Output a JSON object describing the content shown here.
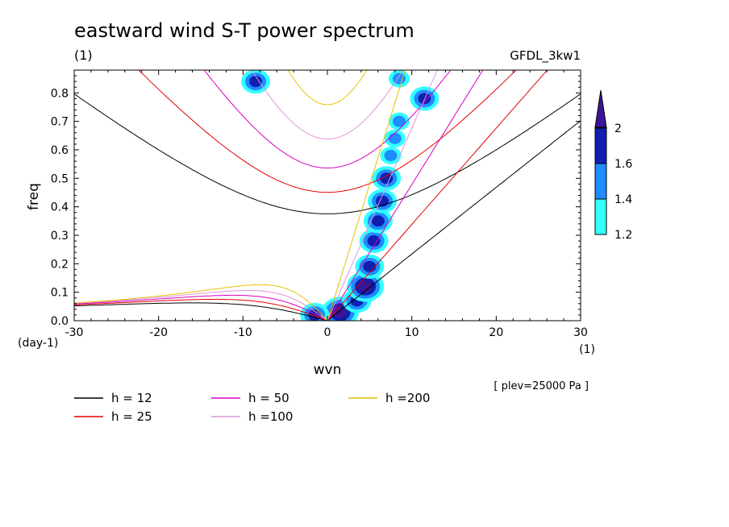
{
  "chart_data": {
    "type": "heatmap",
    "title": "eastward wind S-T power spectrum",
    "subtitle_left": "(1)",
    "subtitle_right": "GFDL_3kw1",
    "xlabel": "wvn",
    "ylabel": "freq",
    "x_unit": "(1)",
    "y_unit": "(day-1)",
    "annotation": "[ plev=25000 Pa ]",
    "xlim": [
      -30,
      30
    ],
    "ylim": [
      0,
      0.88
    ],
    "x_ticks": [
      -30,
      -20,
      -10,
      0,
      10,
      20,
      30
    ],
    "x_tick_labels": [
      "-30",
      "-20",
      "-10",
      "0",
      "10",
      "20",
      "30"
    ],
    "y_ticks": [
      0,
      0.1,
      0.2,
      0.3,
      0.4,
      0.5,
      0.6,
      0.7,
      0.8
    ],
    "y_tick_labels": [
      "0.0",
      "0.1",
      "0.2",
      "0.3",
      "0.4",
      "0.5",
      "0.6",
      "0.7",
      "0.8"
    ],
    "colorbar": {
      "levels": [
        1.2,
        1.4,
        1.6,
        2
      ],
      "level_labels": [
        "1.2",
        "1.4",
        "1.6",
        "2"
      ],
      "colors": [
        "#33ffff",
        "#1f8cff",
        "#0f1fb0",
        "#3c1496"
      ]
    },
    "dispersion_curves": [
      {
        "label": "h = 12",
        "h": 12,
        "color": "#000000"
      },
      {
        "label": "h = 25",
        "h": 25,
        "color": "#e00000"
      },
      {
        "label": "h = 50",
        "h": 50,
        "color": "#d800c0"
      },
      {
        "label": "h =100",
        "h": 100,
        "color": "#dc96dc"
      },
      {
        "label": "h =200",
        "h": 200,
        "color": "#e8c000"
      }
    ],
    "power_blobs": [
      {
        "x": 1.5,
        "y": 0.03,
        "level": 4
      },
      {
        "x": -1.5,
        "y": 0.02,
        "level": 3
      },
      {
        "x": 3.5,
        "y": 0.07,
        "level": 3
      },
      {
        "x": 4.5,
        "y": 0.12,
        "level": 4
      },
      {
        "x": 5.0,
        "y": 0.19,
        "level": 3
      },
      {
        "x": 5.5,
        "y": 0.28,
        "level": 3
      },
      {
        "x": 6.0,
        "y": 0.35,
        "level": 3
      },
      {
        "x": 6.5,
        "y": 0.42,
        "level": 3
      },
      {
        "x": 7.0,
        "y": 0.5,
        "level": 3
      },
      {
        "x": 7.5,
        "y": 0.58,
        "level": 2
      },
      {
        "x": 8.0,
        "y": 0.64,
        "level": 2
      },
      {
        "x": 8.5,
        "y": 0.7,
        "level": 2
      },
      {
        "x": 11.5,
        "y": 0.78,
        "level": 3
      },
      {
        "x": 8.5,
        "y": 0.85,
        "level": 2
      },
      {
        "x": -8.5,
        "y": 0.84,
        "level": 3
      }
    ]
  }
}
